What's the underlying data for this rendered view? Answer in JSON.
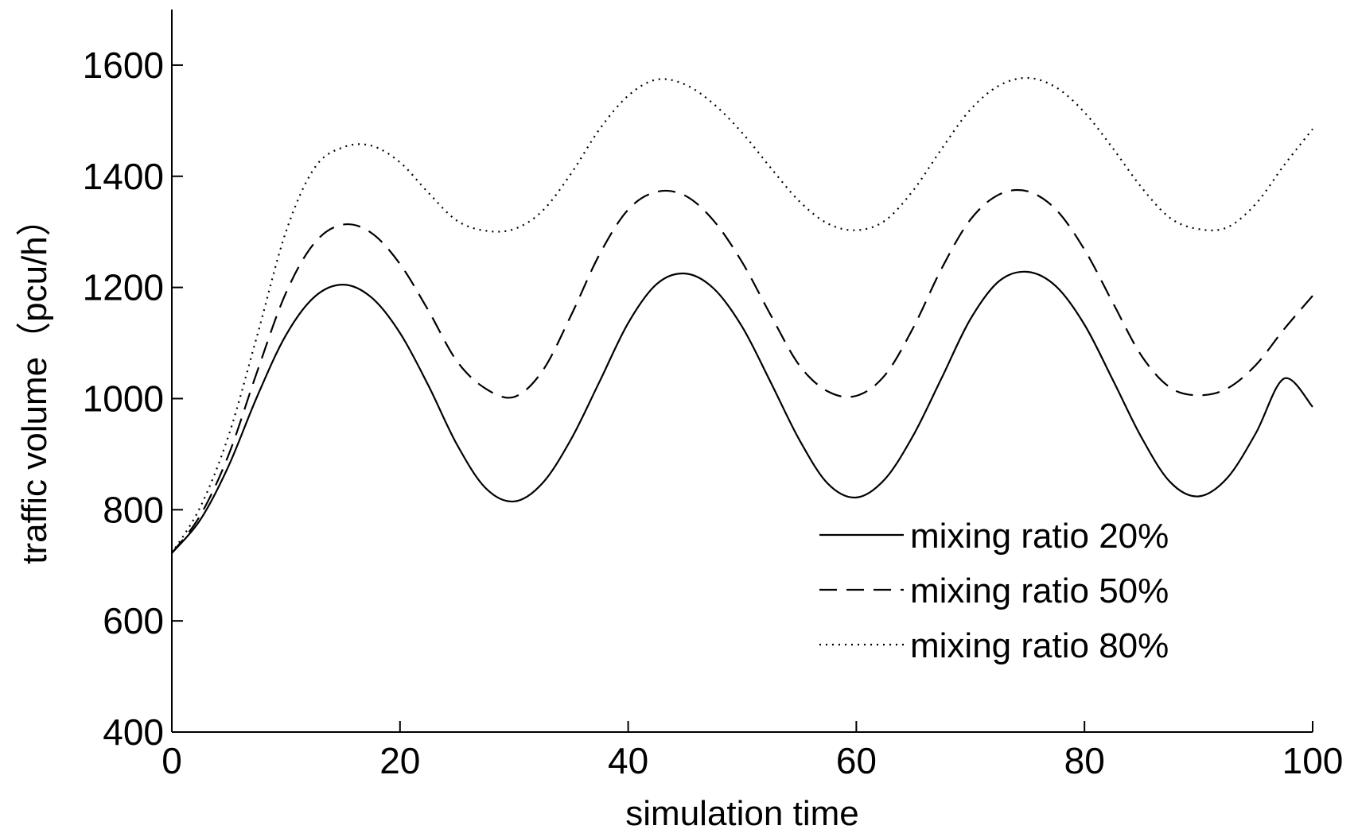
{
  "chart_data": {
    "type": "line",
    "title": "",
    "xlabel": "simulation time",
    "ylabel": "traffic volume（pcu/h）",
    "xlim": [
      0,
      100
    ],
    "ylim": [
      400,
      1700
    ],
    "xticks": [
      0,
      20,
      40,
      60,
      80,
      100
    ],
    "yticks": [
      400,
      600,
      800,
      1000,
      1200,
      1400,
      1600
    ],
    "grid": false,
    "legend_position": "bottom-right",
    "x": [
      0,
      2.5,
      5,
      7.5,
      10,
      12.5,
      15,
      17.5,
      20,
      22.5,
      25,
      27.5,
      30,
      32.5,
      35,
      37.5,
      40,
      42.5,
      45,
      47.5,
      50,
      52.5,
      55,
      57.5,
      60,
      62.5,
      65,
      67.5,
      70,
      72.5,
      75,
      77.5,
      80,
      82.5,
      85,
      87.5,
      90,
      92.5,
      95,
      97.5,
      100
    ],
    "series": [
      {
        "name": "mixing ratio 20%",
        "style": "solid",
        "color": "#000000",
        "values": [
          722,
          782,
          880,
          1005,
          1114,
          1183,
          1205,
          1182,
          1118,
          1023,
          917,
          839,
          815,
          848,
          927,
          1031,
          1136,
          1206,
          1225,
          1198,
          1129,
          1029,
          926,
          847,
          822,
          855,
          934,
          1038,
          1143,
          1211,
          1228,
          1202,
          1133,
          1033,
          930,
          850,
          824,
          857,
          937,
          1036,
          985
        ]
      },
      {
        "name": "mixing ratio 50%",
        "style": "dashed",
        "color": "#000000",
        "values": [
          722,
          790,
          900,
          1050,
          1190,
          1280,
          1313,
          1298,
          1242,
          1158,
          1067,
          1018,
          1003,
          1050,
          1150,
          1260,
          1340,
          1372,
          1365,
          1320,
          1245,
          1150,
          1060,
          1013,
          1005,
          1042,
          1128,
          1235,
          1322,
          1367,
          1373,
          1340,
          1268,
          1172,
          1077,
          1020,
          1006,
          1018,
          1060,
          1125,
          1185
        ]
      },
      {
        "name": "mixing ratio 80%",
        "style": "dotted",
        "color": "#000000",
        "values": [
          722,
          805,
          935,
          1115,
          1300,
          1415,
          1452,
          1455,
          1425,
          1370,
          1320,
          1302,
          1305,
          1338,
          1405,
          1485,
          1545,
          1574,
          1565,
          1530,
          1478,
          1415,
          1355,
          1315,
          1303,
          1320,
          1375,
          1450,
          1520,
          1563,
          1577,
          1560,
          1515,
          1450,
          1380,
          1325,
          1305,
          1308,
          1350,
          1420,
          1485
        ]
      }
    ]
  }
}
